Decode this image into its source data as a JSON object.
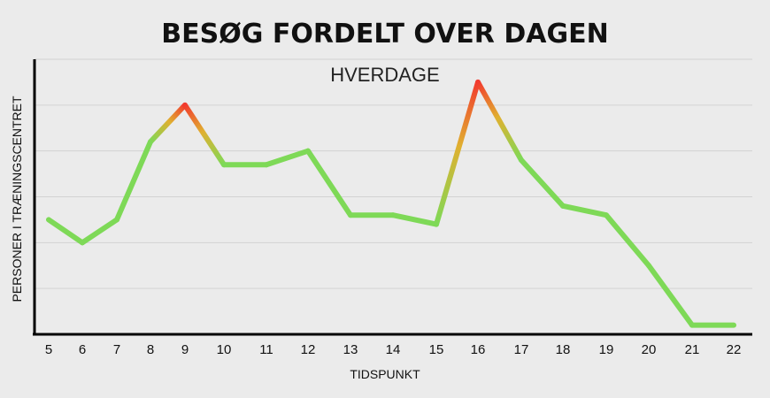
{
  "chart_data": {
    "type": "line",
    "title": "BESØG FORDELT OVER DAGEN",
    "subtitle": "HVERDAGE",
    "xlabel": "TIDSPUNKT",
    "ylabel": "PERSONER I TRÆNINGSCENTRET",
    "x_ticks": [
      "5",
      "6",
      "7",
      "8",
      "9",
      "10",
      "11",
      "12",
      "13",
      "14",
      "15",
      "16",
      "17",
      "18",
      "19",
      "20",
      "21",
      "22"
    ],
    "x_range": [
      5,
      22
    ],
    "ylim": [
      0,
      6
    ],
    "y_tick_labels_shown": false,
    "grid": true,
    "series": [
      {
        "x": [
          5,
          6,
          7,
          8,
          9,
          10,
          11,
          12,
          13,
          14,
          15,
          16,
          17,
          18,
          19,
          20,
          21,
          22
        ],
        "values": [
          2.5,
          2.0,
          2.5,
          4.2,
          5.0,
          3.7,
          3.7,
          4.0,
          2.6,
          2.6,
          2.4,
          5.5,
          3.8,
          2.8,
          2.6,
          1.5,
          0.2,
          0.2
        ]
      }
    ],
    "colors": {
      "line_base": "#7ed957",
      "peak_mid": "#e0b030",
      "peak_top": "#f23a2e",
      "axis": "#000000",
      "grid": "#d2d2d2",
      "background": "#ebebeb"
    },
    "peak_threshold": 4.2
  }
}
